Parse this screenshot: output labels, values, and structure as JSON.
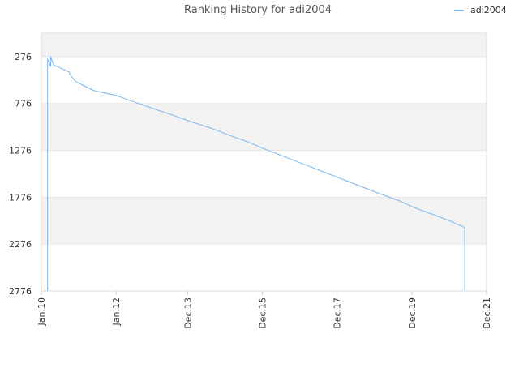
{
  "chart_data": {
    "type": "line",
    "title": "Ranking History for adi2004",
    "xlabel": "",
    "ylabel": "",
    "y_inverted": true,
    "ylim": [
      26,
      2776
    ],
    "y_ticks": [
      276,
      776,
      1276,
      1776,
      2276,
      2776
    ],
    "y_tick_labels": [
      "276",
      "776",
      "1276",
      "1776",
      "2276",
      "2776"
    ],
    "x_ticks": [
      "2010-01",
      "2012-01",
      "2013-12",
      "2015-12",
      "2017-12",
      "2019-12",
      "2021-12"
    ],
    "x_tick_labels": [
      "Jan.10",
      "Jan.12",
      "Dec.13",
      "Dec.15",
      "Dec.17",
      "Dec.19",
      "Dec.21"
    ],
    "xlim": [
      "2010-01",
      "2021-12"
    ],
    "grid": true,
    "legend_position": "top-right",
    "colors": {
      "line": "#7cb5ec",
      "band": "#f2f2f2",
      "grid": "#e6e6e6",
      "axis": "#cccccc"
    },
    "series": [
      {
        "name": "adi2004",
        "points": [
          [
            "2010-03",
            2776
          ],
          [
            "2010-03",
            420
          ],
          [
            "2010-03",
            300
          ],
          [
            "2010-04",
            380
          ],
          [
            "2010-04",
            372
          ],
          [
            "2010-04",
            300
          ],
          [
            "2010-04",
            277
          ],
          [
            "2010-05",
            372
          ],
          [
            "2010-06",
            378
          ],
          [
            "2010-08",
            410
          ],
          [
            "2010-10",
            440
          ],
          [
            "2010-10",
            460
          ],
          [
            "2010-12",
            540
          ],
          [
            "2011-02",
            575
          ],
          [
            "2011-04",
            610
          ],
          [
            "2011-06",
            640
          ],
          [
            "2012-01",
            690
          ],
          [
            "2012-06",
            750
          ],
          [
            "2013-01",
            830
          ],
          [
            "2013-08",
            910
          ],
          [
            "2014-01",
            970
          ],
          [
            "2014-08",
            1045
          ],
          [
            "2015-01",
            1110
          ],
          [
            "2015-08",
            1195
          ],
          [
            "2016-01",
            1265
          ],
          [
            "2016-08",
            1355
          ],
          [
            "2017-01",
            1420
          ],
          [
            "2017-08",
            1510
          ],
          [
            "2018-01",
            1575
          ],
          [
            "2018-08",
            1665
          ],
          [
            "2019-01",
            1730
          ],
          [
            "2019-08",
            1815
          ],
          [
            "2020-01",
            1890
          ],
          [
            "2020-08",
            1975
          ],
          [
            "2021-01",
            2040
          ],
          [
            "2021-05",
            2100
          ],
          [
            "2021-05",
            2776
          ],
          [
            "2021-05",
            2690
          ]
        ]
      }
    ]
  }
}
